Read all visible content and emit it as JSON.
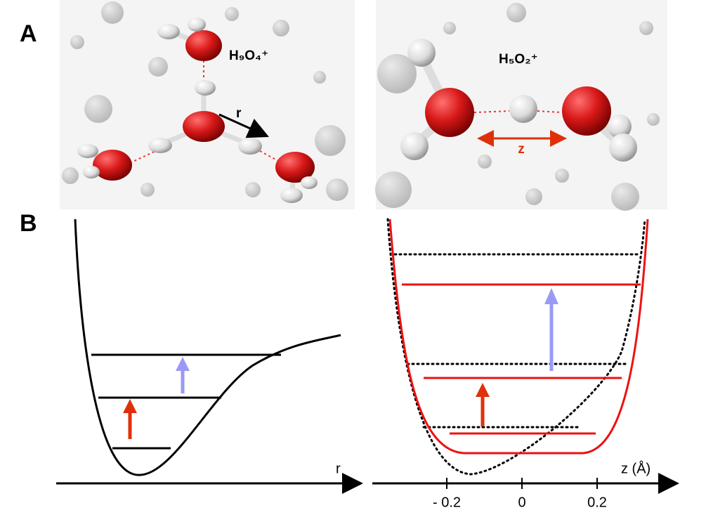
{
  "panel_a": {
    "label": "A",
    "left_molecule": {
      "label": "H₉O₄⁺",
      "coordinate": "r"
    },
    "right_molecule": {
      "label": "H₅O₂⁺",
      "coordinate": "z"
    }
  },
  "panel_b": {
    "label": "B",
    "left_plot": {
      "xlabel": "r"
    },
    "right_plot": {
      "xlabel": "z (Å)",
      "xticks": [
        {
          "value": -0.2,
          "label": "- 0.2"
        },
        0,
        0.2
      ]
    }
  }
}
